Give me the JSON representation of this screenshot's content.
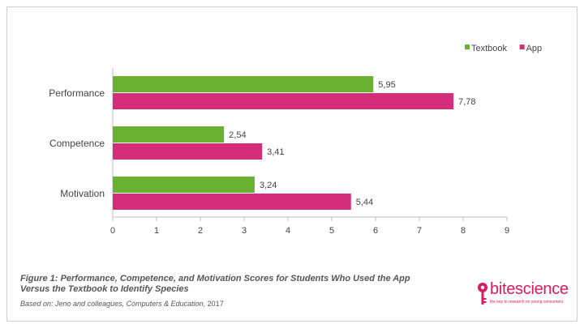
{
  "chart_data": {
    "type": "bar",
    "orientation": "horizontal",
    "categories": [
      "Performance",
      "Competence",
      "Motivation"
    ],
    "series": [
      {
        "name": "Textbook",
        "values": [
          5.95,
          2.54,
          3.24
        ],
        "labels": [
          "5,95",
          "2,54",
          "3,24"
        ],
        "color": "#6ab033"
      },
      {
        "name": "App",
        "values": [
          7.78,
          3.41,
          5.44
        ],
        "labels": [
          "7,78",
          "3,41",
          "5,44"
        ],
        "color": "#d42e7b"
      }
    ],
    "xlim": [
      0,
      9
    ],
    "xticks": [
      "0",
      "1",
      "2",
      "3",
      "4",
      "5",
      "6",
      "7",
      "8",
      "9"
    ],
    "legend_position": "top-right",
    "grid": false
  },
  "caption": {
    "line1": "Figure 1: Performance, Competence, and Motivation Scores for Students Who Used the App",
    "line2": "Versus the Textbook to Identify Species"
  },
  "source": {
    "text": "Based on: Jeno and colleagues, Computers & Education,",
    "year": "2017"
  },
  "logo": {
    "brand_a": "bite",
    "brand_b": "science",
    "tagline": "the key to research on young consumers",
    "icon": "key-icon",
    "color": "#d81b60"
  }
}
